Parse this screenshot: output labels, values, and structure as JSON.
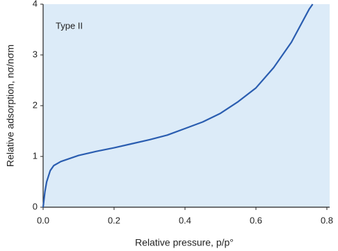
{
  "chart_data": {
    "type": "line",
    "annotation": "Type II",
    "xlabel": "Relative pressure, p/p°",
    "ylabel": "Relative adsorption, nσ/nσm",
    "x": [
      0,
      0.005,
      0.01,
      0.02,
      0.03,
      0.05,
      0.1,
      0.15,
      0.2,
      0.25,
      0.3,
      0.35,
      0.4,
      0.45,
      0.5,
      0.55,
      0.6,
      0.65,
      0.7,
      0.75,
      0.76
    ],
    "series": [
      {
        "color": "#2a5db0",
        "values": [
          0,
          0.3,
          0.5,
          0.72,
          0.82,
          0.9,
          1.02,
          1.1,
          1.17,
          1.25,
          1.33,
          1.42,
          1.55,
          1.68,
          1.85,
          2.08,
          2.35,
          2.75,
          3.25,
          3.9,
          4.0
        ]
      }
    ],
    "xlim": [
      0,
      0.8
    ],
    "ylim": [
      0,
      4
    ],
    "xticks": [
      {
        "value": 0,
        "label": "0.0"
      },
      {
        "value": 0.2,
        "label": "0.2"
      },
      {
        "value": 0.4,
        "label": "0.4"
      },
      {
        "value": 0.6,
        "label": "0.6"
      },
      {
        "value": 0.8,
        "label": "0.8"
      }
    ],
    "yticks": [
      0,
      1,
      2,
      3,
      4
    ],
    "background": "#dcebf8"
  }
}
